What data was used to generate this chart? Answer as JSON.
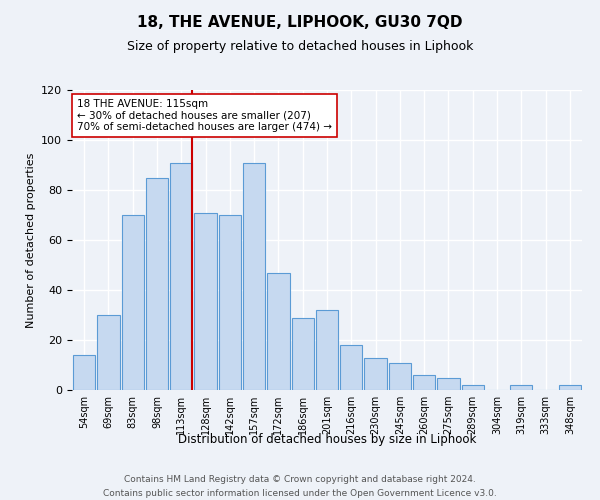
{
  "title": "18, THE AVENUE, LIPHOOK, GU30 7QD",
  "subtitle": "Size of property relative to detached houses in Liphook",
  "xlabel": "Distribution of detached houses by size in Liphook",
  "ylabel": "Number of detached properties",
  "bar_labels": [
    "54sqm",
    "69sqm",
    "83sqm",
    "98sqm",
    "113sqm",
    "128sqm",
    "142sqm",
    "157sqm",
    "172sqm",
    "186sqm",
    "201sqm",
    "216sqm",
    "230sqm",
    "245sqm",
    "260sqm",
    "275sqm",
    "289sqm",
    "304sqm",
    "319sqm",
    "333sqm",
    "348sqm"
  ],
  "bar_values": [
    14,
    30,
    70,
    85,
    91,
    71,
    70,
    91,
    47,
    29,
    32,
    18,
    13,
    11,
    6,
    5,
    2,
    0,
    2,
    0,
    2
  ],
  "bar_color": "#c6d9f0",
  "bar_edge_color": "#5b9bd5",
  "vline_index": 4,
  "vline_color": "#cc0000",
  "ylim": [
    0,
    120
  ],
  "yticks": [
    0,
    20,
    40,
    60,
    80,
    100,
    120
  ],
  "annotation_text": "18 THE AVENUE: 115sqm\n← 30% of detached houses are smaller (207)\n70% of semi-detached houses are larger (474) →",
  "annotation_box_color": "#ffffff",
  "annotation_box_edge": "#cc0000",
  "footer_line1": "Contains HM Land Registry data © Crown copyright and database right 2024.",
  "footer_line2": "Contains public sector information licensed under the Open Government Licence v3.0.",
  "bg_color": "#eef2f8",
  "plot_bg_color": "#eef2f8"
}
